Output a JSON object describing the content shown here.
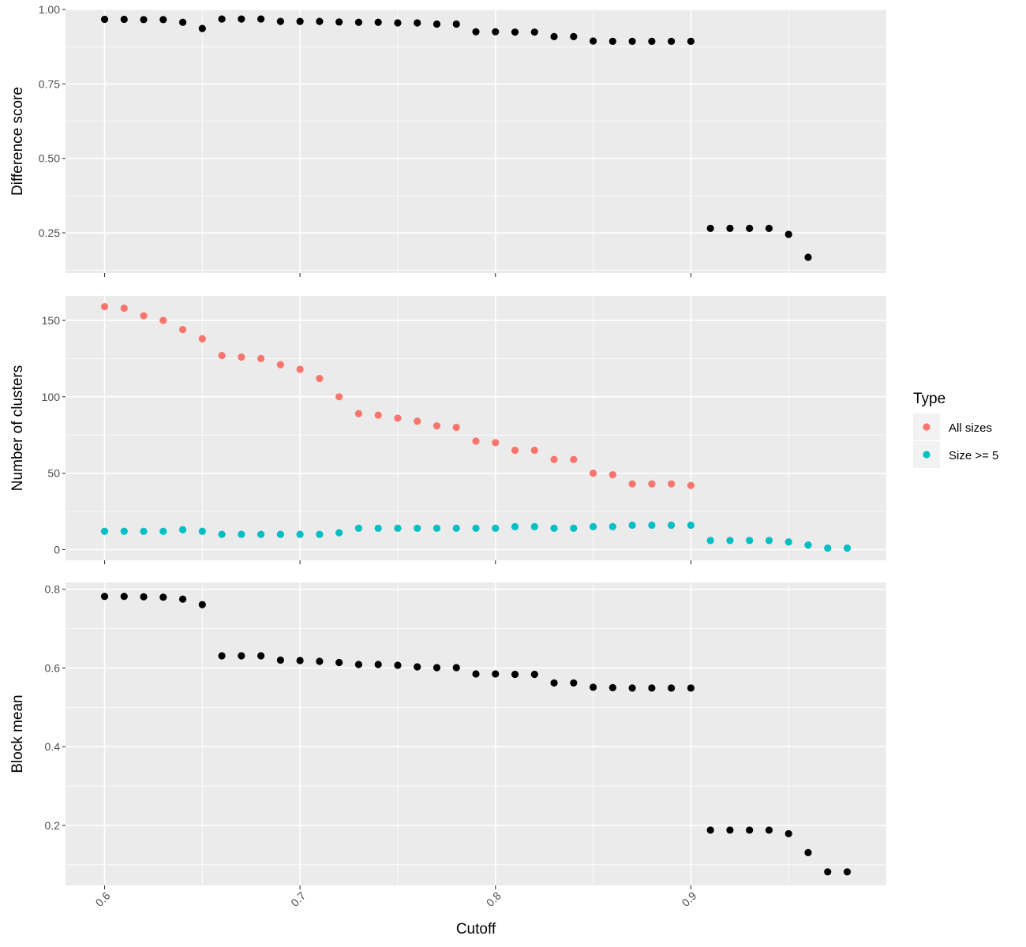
{
  "chart_data": [
    {
      "type": "scatter",
      "ylabel": "Difference score",
      "xlim": [
        0.58,
        1.0
      ],
      "ylim": [
        0.115,
        1.0
      ],
      "yticks": [
        "0.25",
        "0.50",
        "0.75",
        "1.00"
      ],
      "color": "#000000",
      "x": [
        0.6,
        0.61,
        0.62,
        0.63,
        0.64,
        0.65,
        0.66,
        0.67,
        0.68,
        0.69,
        0.7,
        0.71,
        0.72,
        0.73,
        0.74,
        0.75,
        0.76,
        0.77,
        0.78,
        0.79,
        0.8,
        0.81,
        0.82,
        0.83,
        0.84,
        0.85,
        0.86,
        0.87,
        0.88,
        0.89,
        0.9,
        0.91,
        0.92,
        0.93,
        0.94,
        0.95,
        0.96
      ],
      "y": [
        0.967,
        0.967,
        0.966,
        0.966,
        0.957,
        0.936,
        0.968,
        0.968,
        0.968,
        0.96,
        0.96,
        0.96,
        0.958,
        0.957,
        0.957,
        0.955,
        0.955,
        0.951,
        0.951,
        0.925,
        0.925,
        0.924,
        0.924,
        0.909,
        0.909,
        0.894,
        0.893,
        0.893,
        0.893,
        0.893,
        0.893,
        0.265,
        0.265,
        0.265,
        0.265,
        0.245,
        0.168
      ]
    },
    {
      "type": "scatter",
      "ylabel": "Number of clusters",
      "xlim": [
        0.58,
        1.0
      ],
      "ylim": [
        -7,
        166
      ],
      "yticks": [
        "0",
        "50",
        "100",
        "150"
      ],
      "legend": {
        "title": "Type",
        "position": "right"
      },
      "series": [
        {
          "name": "All sizes",
          "color": "#F8766D",
          "x": [
            0.6,
            0.61,
            0.62,
            0.63,
            0.64,
            0.65,
            0.66,
            0.67,
            0.68,
            0.69,
            0.7,
            0.71,
            0.72,
            0.73,
            0.74,
            0.75,
            0.76,
            0.77,
            0.78,
            0.79,
            0.8,
            0.81,
            0.82,
            0.83,
            0.84,
            0.85,
            0.86,
            0.87,
            0.88,
            0.89,
            0.9
          ],
          "y": [
            159,
            158,
            153,
            150,
            144,
            138,
            127,
            126,
            125,
            121,
            118,
            112,
            100,
            89,
            88,
            86,
            84,
            81,
            80,
            71,
            70,
            65,
            65,
            59,
            59,
            50,
            49,
            43,
            43,
            43,
            42
          ]
        },
        {
          "name": "Size >= 5",
          "color": "#00BFC4",
          "x": [
            0.6,
            0.61,
            0.62,
            0.63,
            0.64,
            0.65,
            0.66,
            0.67,
            0.68,
            0.69,
            0.7,
            0.71,
            0.72,
            0.73,
            0.74,
            0.75,
            0.76,
            0.77,
            0.78,
            0.79,
            0.8,
            0.81,
            0.82,
            0.83,
            0.84,
            0.85,
            0.86,
            0.87,
            0.88,
            0.89,
            0.9,
            0.91,
            0.92,
            0.93,
            0.94,
            0.95,
            0.96,
            0.97,
            0.98
          ],
          "y": [
            12,
            12,
            12,
            12,
            13,
            12,
            10,
            10,
            10,
            10,
            10,
            10,
            11,
            14,
            14,
            14,
            14,
            14,
            14,
            14,
            14,
            15,
            15,
            14,
            14,
            15,
            15,
            16,
            16,
            16,
            16,
            6,
            6,
            6,
            6,
            5,
            3,
            1,
            1
          ]
        }
      ]
    },
    {
      "type": "scatter",
      "xlabel": "Cutoff",
      "ylabel": "Block mean",
      "xlim": [
        0.58,
        1.0
      ],
      "ylim": [
        0.0475,
        0.8175
      ],
      "yticks": [
        "0.2",
        "0.4",
        "0.6",
        "0.8"
      ],
      "xticks": [
        "0.6",
        "0.7",
        "0.8",
        "0.9"
      ],
      "color": "#000000",
      "x": [
        0.6,
        0.61,
        0.62,
        0.63,
        0.64,
        0.65,
        0.66,
        0.67,
        0.68,
        0.69,
        0.7,
        0.71,
        0.72,
        0.73,
        0.74,
        0.75,
        0.76,
        0.77,
        0.78,
        0.79,
        0.8,
        0.81,
        0.82,
        0.83,
        0.84,
        0.85,
        0.86,
        0.87,
        0.88,
        0.89,
        0.9,
        0.91,
        0.92,
        0.93,
        0.94,
        0.95,
        0.96,
        0.97,
        0.98
      ],
      "y": [
        0.782,
        0.782,
        0.781,
        0.78,
        0.775,
        0.761,
        0.631,
        0.631,
        0.631,
        0.62,
        0.619,
        0.617,
        0.614,
        0.609,
        0.609,
        0.607,
        0.603,
        0.601,
        0.601,
        0.585,
        0.585,
        0.584,
        0.584,
        0.562,
        0.562,
        0.551,
        0.55,
        0.549,
        0.549,
        0.549,
        0.549,
        0.188,
        0.188,
        0.188,
        0.188,
        0.179,
        0.131,
        0.082,
        0.082
      ]
    }
  ]
}
